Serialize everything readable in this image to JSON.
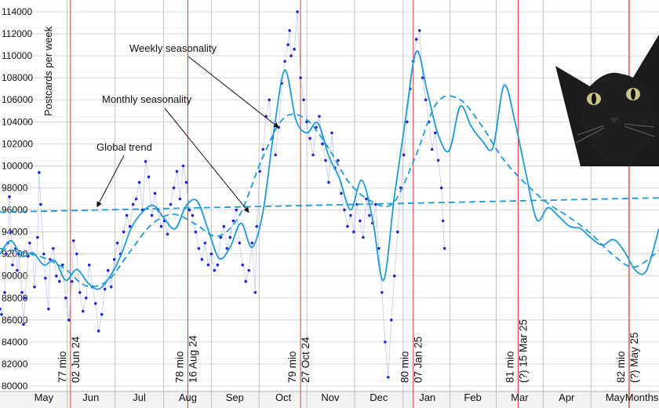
{
  "chart_data": {
    "type": "line",
    "ylabel": "Postcards per week",
    "xlabel": "",
    "ylim": [
      79500,
      114500
    ],
    "y_ticks": [
      80000,
      82000,
      84000,
      86000,
      88000,
      90000,
      92000,
      94000,
      96000,
      98000,
      100000,
      102000,
      104000,
      106000,
      108000,
      110000,
      112000,
      114000
    ],
    "x_domain": [
      "2024-04-18",
      "2025-06-13"
    ],
    "month_labels": [
      {
        "label": "May",
        "date": "2024-05-16"
      },
      {
        "label": "Jun",
        "date": "2024-06-15"
      },
      {
        "label": "Jul",
        "date": "2024-07-16"
      },
      {
        "label": "Aug",
        "date": "2024-08-16"
      },
      {
        "label": "Sep",
        "date": "2024-09-15"
      },
      {
        "label": "Oct",
        "date": "2024-10-16"
      },
      {
        "label": "Nov",
        "date": "2024-11-15"
      },
      {
        "label": "Dec",
        "date": "2024-12-16"
      },
      {
        "label": "Jan",
        "date": "2025-01-16"
      },
      {
        "label": "Feb",
        "date": "2025-02-14"
      },
      {
        "label": "Mar",
        "date": "2025-03-16"
      },
      {
        "label": "Apr",
        "date": "2025-04-15"
      },
      {
        "label": "May",
        "date": "2025-05-16"
      },
      {
        "label": "Months",
        "date": "2025-06-02"
      }
    ],
    "milestones": [
      {
        "date": "2024-06-02",
        "count": "77 mio",
        "label": "02 Jun 24"
      },
      {
        "date": "2024-08-16",
        "count": "78 mio",
        "label": "16 Aug 24"
      },
      {
        "date": "2024-10-27",
        "count": "79 mio",
        "label": "27 Oct 24"
      },
      {
        "date": "2025-01-07",
        "count": "80 mio",
        "label": "07 Jan 25"
      },
      {
        "date": "2025-03-15",
        "count": "81 mio",
        "label": "(?) 15 Mar 25"
      },
      {
        "date": "2025-05-25",
        "count": "82 mio",
        "label": "(?) May 25"
      }
    ],
    "annotations": [
      {
        "text": "Weekly seasonality",
        "points_to": "2024-10-13"
      },
      {
        "text": "Monthly seasonality",
        "points_to": "2024-09-24"
      },
      {
        "text": "Global trend",
        "points_to": "2024-06-19"
      }
    ],
    "series": [
      {
        "style": "dashed",
        "x": [
          "2024-04-18",
          "2025-06-13"
        ],
        "y": [
          95800,
          97100
        ]
      },
      {
        "style": "dashed",
        "x": [
          "2024-04-18",
          "2024-05-01",
          "2024-05-15",
          "2024-05-29",
          "2024-06-12",
          "2024-06-26",
          "2024-07-10",
          "2024-07-24",
          "2024-08-07",
          "2024-08-21",
          "2024-09-04",
          "2024-09-18",
          "2024-10-02",
          "2024-10-16",
          "2024-10-30",
          "2024-11-13",
          "2024-11-27",
          "2024-12-11",
          "2024-12-25",
          "2025-01-08",
          "2025-01-22",
          "2025-02-05",
          "2025-02-19",
          "2025-03-05",
          "2025-03-19",
          "2025-04-02",
          "2025-04-16",
          "2025-04-30",
          "2025-05-14",
          "2025-05-28",
          "2025-06-13"
        ],
        "y": [
          92500,
          92200,
          91700,
          90700,
          89100,
          89600,
          92200,
          94700,
          95600,
          94700,
          93600,
          95500,
          100500,
          104300,
          104300,
          101800,
          98500,
          96800,
          96600,
          100700,
          105700,
          106100,
          103800,
          100700,
          98500,
          96700,
          95400,
          93900,
          92000,
          90800,
          92300
        ]
      },
      {
        "style": "solid",
        "x": [
          "2024-04-18",
          "2024-04-25",
          "2024-05-02",
          "2024-05-09",
          "2024-05-16",
          "2024-05-23",
          "2024-05-30",
          "2024-06-06",
          "2024-06-13",
          "2024-06-20",
          "2024-06-27",
          "2024-07-04",
          "2024-07-11",
          "2024-07-18",
          "2024-07-25",
          "2024-08-01",
          "2024-08-08",
          "2024-08-15",
          "2024-08-22",
          "2024-08-29",
          "2024-09-05",
          "2024-09-12",
          "2024-09-19",
          "2024-09-26",
          "2024-10-03",
          "2024-10-10",
          "2024-10-17",
          "2024-10-24",
          "2024-10-31",
          "2024-11-07",
          "2024-11-14",
          "2024-11-21",
          "2024-11-28",
          "2024-12-05",
          "2024-12-12",
          "2024-12-19",
          "2024-12-26",
          "2025-01-02",
          "2025-01-09",
          "2025-01-16",
          "2025-01-23",
          "2025-01-30",
          "2025-02-06",
          "2025-02-13",
          "2025-02-20",
          "2025-02-27",
          "2025-03-06",
          "2025-03-13",
          "2025-03-20",
          "2025-03-27",
          "2025-04-03",
          "2025-04-10",
          "2025-04-17",
          "2025-04-24",
          "2025-05-01",
          "2025-05-08",
          "2025-05-15",
          "2025-05-22",
          "2025-05-29",
          "2025-06-05",
          "2025-06-13"
        ],
        "y": [
          92000,
          93200,
          91800,
          92100,
          91000,
          91400,
          89600,
          90600,
          89400,
          88800,
          89900,
          91800,
          94400,
          95800,
          96400,
          95200,
          94300,
          96400,
          96800,
          94200,
          91600,
          92600,
          94800,
          92600,
          95800,
          103200,
          108700,
          104200,
          103000,
          103900,
          100900,
          98800,
          96000,
          98700,
          95200,
          89600,
          97300,
          104200,
          110400,
          106700,
          102800,
          101400,
          105400,
          103600,
          102300,
          101700,
          107300,
          104000,
          99300,
          95100,
          96200,
          95400,
          94500,
          94300,
          93400,
          92800,
          93300,
          92200,
          90500,
          90500,
          94300
        ]
      }
    ],
    "scatter": [
      [
        "2024-04-18",
        87000
      ],
      [
        "2024-04-19",
        86500
      ],
      [
        "2024-04-21",
        88500
      ],
      [
        "2024-04-22",
        92000
      ],
      [
        "2024-04-23",
        93000
      ],
      [
        "2024-04-24",
        97200
      ],
      [
        "2024-04-25",
        94000
      ],
      [
        "2024-04-26",
        91000
      ],
      [
        "2024-04-28",
        92500
      ],
      [
        "2024-04-29",
        90500
      ],
      [
        "2024-04-30",
        92000
      ],
      [
        "2024-05-02",
        88500
      ],
      [
        "2024-05-03",
        85600
      ],
      [
        "2024-05-04",
        88000
      ],
      [
        "2024-05-06",
        91800
      ],
      [
        "2024-05-07",
        93000
      ],
      [
        "2024-05-09",
        92000
      ],
      [
        "2024-05-10",
        89000
      ],
      [
        "2024-05-12",
        93500
      ],
      [
        "2024-05-13",
        99400
      ],
      [
        "2024-05-14",
        96500
      ],
      [
        "2024-05-16",
        92000
      ],
      [
        "2024-05-17",
        89800
      ],
      [
        "2024-05-19",
        87000
      ],
      [
        "2024-05-20",
        91500
      ],
      [
        "2024-05-22",
        92500
      ],
      [
        "2024-05-24",
        90000
      ],
      [
        "2024-05-26",
        89500
      ],
      [
        "2024-05-28",
        91000
      ],
      [
        "2024-05-30",
        88000
      ],
      [
        "2024-06-01",
        86000
      ],
      [
        "2024-06-03",
        89500
      ],
      [
        "2024-06-04",
        93200
      ],
      [
        "2024-06-06",
        92000
      ],
      [
        "2024-06-08",
        88500
      ],
      [
        "2024-06-10",
        86800
      ],
      [
        "2024-06-12",
        88000
      ],
      [
        "2024-06-14",
        91000
      ],
      [
        "2024-06-16",
        89000
      ],
      [
        "2024-06-18",
        87500
      ],
      [
        "2024-06-20",
        85000
      ],
      [
        "2024-06-22",
        86500
      ],
      [
        "2024-06-24",
        88800
      ],
      [
        "2024-06-26",
        90500
      ],
      [
        "2024-06-28",
        89000
      ],
      [
        "2024-06-30",
        91500
      ],
      [
        "2024-07-02",
        93000
      ],
      [
        "2024-07-04",
        92000
      ],
      [
        "2024-07-06",
        94000
      ],
      [
        "2024-07-08",
        95500
      ],
      [
        "2024-07-10",
        94500
      ],
      [
        "2024-07-12",
        96500
      ],
      [
        "2024-07-14",
        97000
      ],
      [
        "2024-07-16",
        98500
      ],
      [
        "2024-07-18",
        96000
      ],
      [
        "2024-07-20",
        100400
      ],
      [
        "2024-07-22",
        99000
      ],
      [
        "2024-07-24",
        95500
      ],
      [
        "2024-07-26",
        97500
      ],
      [
        "2024-07-28",
        96000
      ],
      [
        "2024-07-30",
        94500
      ],
      [
        "2024-08-01",
        95000
      ],
      [
        "2024-08-03",
        93800
      ],
      [
        "2024-08-05",
        96500
      ],
      [
        "2024-08-07",
        98000
      ],
      [
        "2024-08-09",
        99500
      ],
      [
        "2024-08-11",
        97000
      ],
      [
        "2024-08-13",
        100000
      ],
      [
        "2024-08-15",
        98500
      ],
      [
        "2024-08-17",
        96000
      ],
      [
        "2024-08-19",
        95500
      ],
      [
        "2024-08-21",
        94000
      ],
      [
        "2024-08-23",
        92500
      ],
      [
        "2024-08-25",
        91500
      ],
      [
        "2024-08-27",
        93000
      ],
      [
        "2024-08-29",
        91000
      ],
      [
        "2024-08-31",
        92000
      ],
      [
        "2024-09-02",
        90500
      ],
      [
        "2024-09-04",
        91000
      ],
      [
        "2024-09-06",
        93500
      ],
      [
        "2024-09-08",
        94500
      ],
      [
        "2024-09-10",
        92500
      ],
      [
        "2024-09-12",
        93500
      ],
      [
        "2024-09-14",
        95000
      ],
      [
        "2024-09-16",
        96000
      ],
      [
        "2024-09-18",
        93000
      ],
      [
        "2024-09-20",
        91000
      ],
      [
        "2024-09-22",
        89500
      ],
      [
        "2024-09-24",
        90500
      ],
      [
        "2024-09-26",
        93000
      ],
      [
        "2024-09-28",
        88500
      ],
      [
        "2024-09-29",
        94500
      ],
      [
        "2024-10-01",
        99500
      ],
      [
        "2024-10-03",
        101500
      ],
      [
        "2024-10-05",
        104500
      ],
      [
        "2024-10-07",
        106000
      ],
      [
        "2024-10-09",
        102500
      ],
      [
        "2024-10-11",
        101000
      ],
      [
        "2024-10-13",
        103500
      ],
      [
        "2024-10-15",
        107500
      ],
      [
        "2024-10-17",
        109500
      ],
      [
        "2024-10-19",
        111000
      ],
      [
        "2024-10-20",
        112300
      ],
      [
        "2024-10-21",
        110000
      ],
      [
        "2024-10-23",
        110600
      ],
      [
        "2024-10-25",
        114000
      ],
      [
        "2024-10-27",
        108000
      ],
      [
        "2024-10-29",
        106000
      ],
      [
        "2024-10-31",
        104000
      ],
      [
        "2024-11-02",
        102500
      ],
      [
        "2024-11-04",
        101000
      ],
      [
        "2024-11-06",
        103500
      ],
      [
        "2024-11-08",
        104500
      ],
      [
        "2024-11-10",
        102000
      ],
      [
        "2024-11-12",
        100500
      ],
      [
        "2024-11-14",
        98500
      ],
      [
        "2024-11-16",
        103000
      ],
      [
        "2024-11-18",
        99800
      ],
      [
        "2024-11-20",
        100500
      ],
      [
        "2024-11-22",
        97500
      ],
      [
        "2024-11-24",
        96000
      ],
      [
        "2024-11-26",
        94500
      ],
      [
        "2024-11-28",
        95500
      ],
      [
        "2024-11-30",
        94000
      ],
      [
        "2024-12-02",
        96500
      ],
      [
        "2024-12-04",
        95000
      ],
      [
        "2024-12-06",
        93500
      ],
      [
        "2024-12-08",
        97000
      ],
      [
        "2024-12-10",
        95500
      ],
      [
        "2024-12-12",
        94800
      ],
      [
        "2024-12-14",
        96500
      ],
      [
        "2024-12-16",
        92500
      ],
      [
        "2024-12-18",
        88500
      ],
      [
        "2024-12-20",
        84000
      ],
      [
        "2024-12-22",
        80800
      ],
      [
        "2024-12-24",
        86000
      ],
      [
        "2024-12-26",
        90000
      ],
      [
        "2024-12-28",
        94000
      ],
      [
        "2024-12-30",
        98000
      ],
      [
        "2025-01-01",
        101000
      ],
      [
        "2025-01-03",
        104000
      ],
      [
        "2025-01-05",
        107000
      ],
      [
        "2025-01-07",
        109500
      ],
      [
        "2025-01-09",
        111500
      ],
      [
        "2025-01-11",
        112300
      ],
      [
        "2025-01-13",
        108000
      ],
      [
        "2025-01-15",
        106000
      ],
      [
        "2025-01-17",
        104000
      ],
      [
        "2025-01-19",
        101500
      ],
      [
        "2025-01-21",
        103000
      ],
      [
        "2025-01-23",
        100500
      ],
      [
        "2025-01-25",
        98000
      ],
      [
        "2025-01-26",
        95000
      ],
      [
        "2025-01-27",
        92500
      ]
    ]
  }
}
